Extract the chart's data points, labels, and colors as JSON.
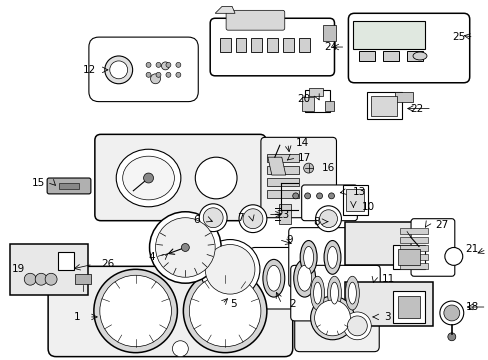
{
  "bg": "#ffffff",
  "fw": 4.89,
  "fh": 3.6,
  "dpi": 100
}
